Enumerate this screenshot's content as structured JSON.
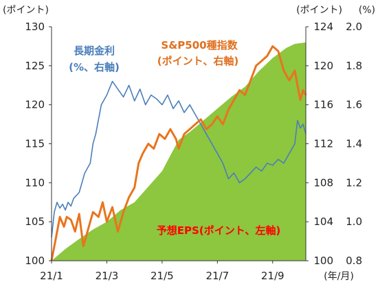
{
  "chart_data": {
    "type": "area",
    "title": "",
    "x_axis": {
      "tick_labels": [
        "21/1",
        "21/3",
        "21/5",
        "21/7",
        "21/9"
      ],
      "tick_months": [
        0,
        2,
        4,
        6,
        8
      ],
      "unit_label": "(年/月)",
      "range_months": [
        0,
        9.2
      ]
    },
    "y_axis_left": {
      "unit_label": "(ポイント)",
      "range": [
        100,
        130
      ],
      "ticks": [
        100,
        105,
        110,
        115,
        120,
        125,
        130
      ]
    },
    "y_axis_right_1": {
      "unit_label": "(ポイント)",
      "range": [
        100,
        124
      ],
      "ticks": [
        100,
        104,
        108,
        112,
        116,
        120,
        124
      ]
    },
    "y_axis_right_2": {
      "unit_label": "(%)",
      "range": [
        0.8,
        2.0
      ],
      "ticks": [
        "0.8",
        "1.0",
        "1.2",
        "1.4",
        "1.6",
        "1.8",
        "2.0"
      ]
    },
    "series": [
      {
        "name": "予想EPS(ポイント、左軸)",
        "axis": "left",
        "type": "area",
        "color": "#8dc63f",
        "points": [
          [
            0,
            100.0
          ],
          [
            0.5,
            101.5
          ],
          [
            1,
            102.8
          ],
          [
            1.5,
            104.0
          ],
          [
            2,
            105.0
          ],
          [
            2.5,
            106.5
          ],
          [
            3,
            107.5
          ],
          [
            3.5,
            109.5
          ],
          [
            4,
            111.5
          ],
          [
            4.3,
            113.5
          ],
          [
            4.6,
            115.5
          ],
          [
            5,
            116.5
          ],
          [
            5.5,
            118.0
          ],
          [
            6,
            119.5
          ],
          [
            6.5,
            121.0
          ],
          [
            7,
            122.3
          ],
          [
            7.5,
            124.3
          ],
          [
            8,
            126.0
          ],
          [
            8.5,
            127.3
          ],
          [
            8.8,
            127.8
          ],
          [
            9.2,
            128.0
          ]
        ]
      },
      {
        "name": "S&P500種指数(ポイント、右軸)",
        "axis": "right_1",
        "type": "line",
        "color": "#e8741e",
        "points": [
          [
            0,
            100.0
          ],
          [
            0.15,
            102.2
          ],
          [
            0.3,
            104.5
          ],
          [
            0.45,
            103.5
          ],
          [
            0.55,
            104.5
          ],
          [
            0.7,
            104.2
          ],
          [
            0.85,
            103.0
          ],
          [
            1.0,
            104.8
          ],
          [
            1.15,
            101.5
          ],
          [
            1.3,
            103.0
          ],
          [
            1.5,
            105.0
          ],
          [
            1.7,
            104.5
          ],
          [
            1.85,
            106.0
          ],
          [
            2.0,
            104.0
          ],
          [
            2.2,
            105.5
          ],
          [
            2.4,
            103.0
          ],
          [
            2.6,
            105.0
          ],
          [
            2.8,
            106.5
          ],
          [
            3.0,
            107.5
          ],
          [
            3.15,
            110.0
          ],
          [
            3.3,
            111.0
          ],
          [
            3.5,
            112.0
          ],
          [
            3.7,
            111.5
          ],
          [
            3.9,
            113.0
          ],
          [
            4.1,
            112.5
          ],
          [
            4.3,
            113.5
          ],
          [
            4.5,
            112.5
          ],
          [
            4.6,
            111.5
          ],
          [
            4.8,
            113.0
          ],
          [
            5.0,
            113.5
          ],
          [
            5.2,
            114.0
          ],
          [
            5.4,
            114.5
          ],
          [
            5.6,
            113.5
          ],
          [
            5.8,
            114.0
          ],
          [
            6.0,
            114.8
          ],
          [
            6.2,
            114.0
          ],
          [
            6.4,
            115.5
          ],
          [
            6.6,
            116.5
          ],
          [
            6.8,
            117.5
          ],
          [
            7.0,
            117.0
          ],
          [
            7.2,
            118.5
          ],
          [
            7.4,
            120.0
          ],
          [
            7.6,
            120.5
          ],
          [
            7.8,
            121.0
          ],
          [
            8.0,
            122.0
          ],
          [
            8.2,
            121.5
          ],
          [
            8.4,
            119.5
          ],
          [
            8.6,
            118.5
          ],
          [
            8.8,
            119.5
          ],
          [
            8.9,
            118.0
          ],
          [
            9.0,
            116.5
          ],
          [
            9.1,
            117.5
          ],
          [
            9.2,
            117.0
          ]
        ]
      },
      {
        "name": "長期金利(%、右軸)",
        "axis": "right_2",
        "type": "line",
        "color": "#4a7ebb",
        "points": [
          [
            0,
            0.92
          ],
          [
            0.1,
            1.05
          ],
          [
            0.2,
            1.1
          ],
          [
            0.3,
            1.07
          ],
          [
            0.4,
            1.09
          ],
          [
            0.5,
            1.06
          ],
          [
            0.6,
            1.1
          ],
          [
            0.7,
            1.08
          ],
          [
            0.8,
            1.12
          ],
          [
            1.0,
            1.15
          ],
          [
            1.2,
            1.25
          ],
          [
            1.4,
            1.3
          ],
          [
            1.5,
            1.4
          ],
          [
            1.6,
            1.45
          ],
          [
            1.8,
            1.6
          ],
          [
            2.0,
            1.65
          ],
          [
            2.2,
            1.72
          ],
          [
            2.4,
            1.68
          ],
          [
            2.6,
            1.64
          ],
          [
            2.8,
            1.7
          ],
          [
            3.0,
            1.62
          ],
          [
            3.2,
            1.68
          ],
          [
            3.4,
            1.6
          ],
          [
            3.6,
            1.65
          ],
          [
            3.8,
            1.63
          ],
          [
            4.0,
            1.6
          ],
          [
            4.2,
            1.65
          ],
          [
            4.4,
            1.58
          ],
          [
            4.6,
            1.62
          ],
          [
            4.8,
            1.56
          ],
          [
            5.0,
            1.6
          ],
          [
            5.2,
            1.55
          ],
          [
            5.4,
            1.5
          ],
          [
            5.6,
            1.45
          ],
          [
            5.8,
            1.4
          ],
          [
            6.0,
            1.35
          ],
          [
            6.2,
            1.3
          ],
          [
            6.4,
            1.22
          ],
          [
            6.6,
            1.25
          ],
          [
            6.8,
            1.2
          ],
          [
            7.0,
            1.22
          ],
          [
            7.2,
            1.25
          ],
          [
            7.4,
            1.28
          ],
          [
            7.6,
            1.26
          ],
          [
            7.8,
            1.3
          ],
          [
            8.0,
            1.29
          ],
          [
            8.2,
            1.32
          ],
          [
            8.4,
            1.3
          ],
          [
            8.6,
            1.35
          ],
          [
            8.8,
            1.4
          ],
          [
            8.9,
            1.52
          ],
          [
            9.0,
            1.48
          ],
          [
            9.1,
            1.5
          ],
          [
            9.2,
            1.45
          ]
        ]
      }
    ],
    "annotations": [
      {
        "series": 2,
        "lines": [
          "長期金利",
          "(%、右軸)"
        ]
      },
      {
        "series": 1,
        "lines": [
          "S&P500種指数",
          "(ポイント、右軸)"
        ]
      },
      {
        "series": 0,
        "lines": [
          "予想EPS(ポイント、左軸)"
        ]
      }
    ]
  }
}
